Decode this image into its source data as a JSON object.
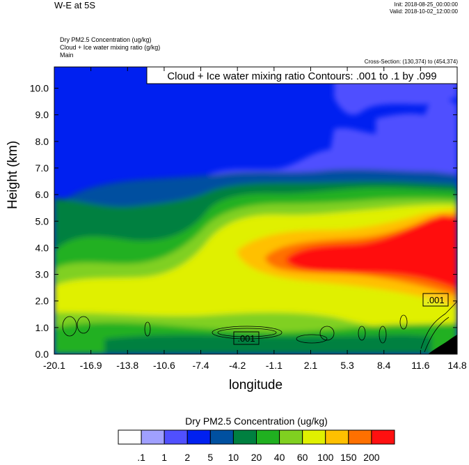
{
  "header": {
    "title": "W-E at 5S",
    "init": "Init: 2018-08-25_00:00:00",
    "valid": "Valid: 2018-10-02_12:00:00",
    "fields": [
      "Dry PM2.5 Concentration   (ug/kg)",
      "Cloud + Ice water mixing ratio   (g/kg)",
      "Main"
    ],
    "cross_section": "Cross-Section: (130,374) to (454,374)"
  },
  "chart_data": {
    "type": "heatmap",
    "title": "Dry PM2.5 Concentration  (ug/kg)",
    "xlabel": "longitude",
    "ylabel": "Height (km)",
    "xlim": [
      -20.1,
      14.8
    ],
    "ylim": [
      0.0,
      10.8
    ],
    "x_ticks": [
      "-20.1",
      "-16.9",
      "-13.8",
      "-10.6",
      "-7.4",
      "-4.2",
      "-1.1",
      "2.1",
      "5.3",
      "8.4",
      "11.6",
      "14.8"
    ],
    "y_ticks": [
      "0.0",
      "1.0",
      "2.0",
      "3.0",
      "4.0",
      "5.0",
      "6.0",
      "7.0",
      "8.0",
      "9.0",
      "10.0"
    ],
    "colorbar": {
      "labels": [
        ".1",
        "1",
        "2",
        "5",
        "10",
        "20",
        "40",
        "60",
        "100",
        "150",
        "200"
      ],
      "colors": [
        "#ffffff",
        "#a0a0ff",
        "#5050ff",
        "#0020f0",
        "#0050a0",
        "#008040",
        "#20b020",
        "#80d020",
        "#e0f000",
        "#ffc000",
        "#ff7000",
        "#ff1010"
      ]
    },
    "contour_info": "Cloud + Ice water mixing ratio Contours: .001 to .1 by .099",
    "contour_labels": [
      ".001",
      ".001"
    ],
    "grid": false
  }
}
